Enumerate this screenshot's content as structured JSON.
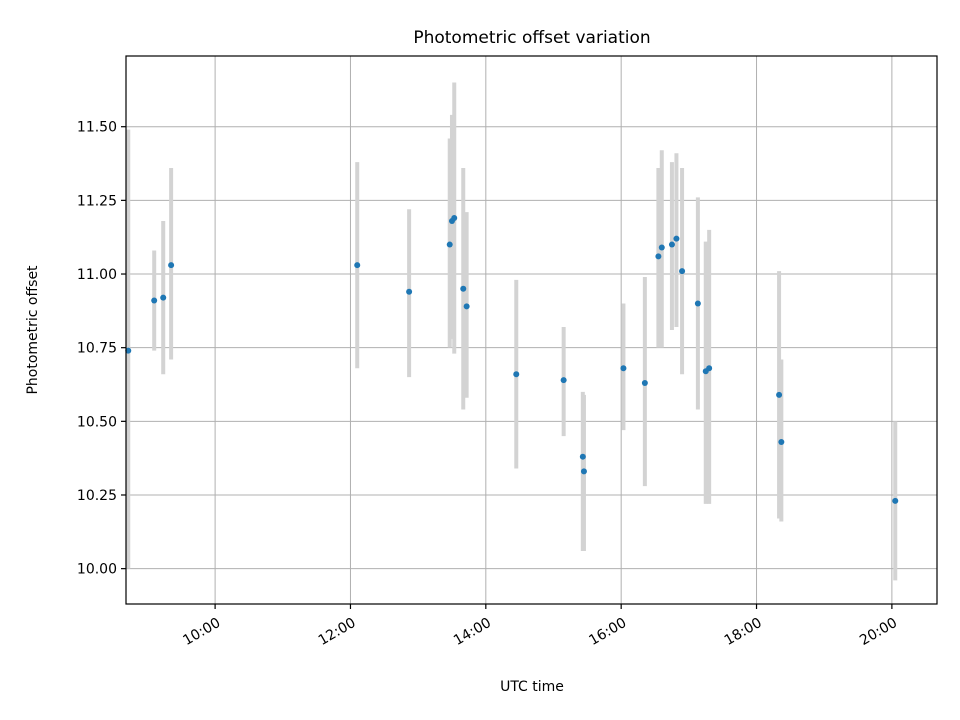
{
  "chart_data": {
    "type": "scatter",
    "title": "Photometric offset variation",
    "xlabel": "UTC time",
    "ylabel": "Photometric offset",
    "x_axis": "time",
    "xlim": [
      "08:41",
      "20:40"
    ],
    "ylim": [
      9.88,
      11.74
    ],
    "x_ticks": [
      "10:00",
      "12:00",
      "14:00",
      "16:00",
      "18:00",
      "20:00"
    ],
    "y_ticks": [
      10.0,
      10.25,
      10.5,
      10.75,
      11.0,
      11.25,
      11.5
    ],
    "y_tick_labels": [
      "10.00",
      "10.25",
      "10.50",
      "10.75",
      "11.00",
      "11.25",
      "11.50"
    ],
    "grid": true,
    "series": [
      {
        "marker_color": "#1f77b4",
        "errorbar_color": "#d3d3d3",
        "points": [
          {
            "t": "08:43",
            "y": 10.74,
            "ylo": 10.0,
            "yhi": 11.49
          },
          {
            "t": "09:06",
            "y": 10.91,
            "ylo": 10.74,
            "yhi": 11.08
          },
          {
            "t": "09:14",
            "y": 10.92,
            "ylo": 10.66,
            "yhi": 11.18
          },
          {
            "t": "09:21",
            "y": 11.03,
            "ylo": 10.71,
            "yhi": 11.36
          },
          {
            "t": "12:06",
            "y": 11.03,
            "ylo": 10.68,
            "yhi": 11.38
          },
          {
            "t": "12:52",
            "y": 10.94,
            "ylo": 10.65,
            "yhi": 11.22
          },
          {
            "t": "13:28",
            "y": 11.1,
            "ylo": 10.75,
            "yhi": 11.46
          },
          {
            "t": "13:30",
            "y": 11.18,
            "ylo": 10.78,
            "yhi": 11.54
          },
          {
            "t": "13:32",
            "y": 11.19,
            "ylo": 10.73,
            "yhi": 11.65
          },
          {
            "t": "13:40",
            "y": 10.95,
            "ylo": 10.54,
            "yhi": 11.36
          },
          {
            "t": "13:43",
            "y": 10.89,
            "ylo": 10.58,
            "yhi": 11.21
          },
          {
            "t": "14:27",
            "y": 10.66,
            "ylo": 10.34,
            "yhi": 10.98
          },
          {
            "t": "15:09",
            "y": 10.64,
            "ylo": 10.45,
            "yhi": 10.82
          },
          {
            "t": "15:26",
            "y": 10.38,
            "ylo": 10.06,
            "yhi": 10.6
          },
          {
            "t": "15:27",
            "y": 10.33,
            "ylo": 10.06,
            "yhi": 10.59
          },
          {
            "t": "16:02",
            "y": 10.68,
            "ylo": 10.47,
            "yhi": 10.9
          },
          {
            "t": "16:21",
            "y": 10.63,
            "ylo": 10.28,
            "yhi": 10.99
          },
          {
            "t": "16:33",
            "y": 11.06,
            "ylo": 10.75,
            "yhi": 11.36
          },
          {
            "t": "16:36",
            "y": 11.09,
            "ylo": 10.75,
            "yhi": 11.42
          },
          {
            "t": "16:45",
            "y": 11.1,
            "ylo": 10.81,
            "yhi": 11.38
          },
          {
            "t": "16:49",
            "y": 11.12,
            "ylo": 10.82,
            "yhi": 11.41
          },
          {
            "t": "16:54",
            "y": 11.01,
            "ylo": 10.66,
            "yhi": 11.36
          },
          {
            "t": "17:08",
            "y": 10.9,
            "ylo": 10.54,
            "yhi": 11.26
          },
          {
            "t": "17:15",
            "y": 10.67,
            "ylo": 10.22,
            "yhi": 11.11
          },
          {
            "t": "17:18",
            "y": 10.68,
            "ylo": 10.22,
            "yhi": 11.15
          },
          {
            "t": "18:20",
            "y": 10.59,
            "ylo": 10.17,
            "yhi": 11.01
          },
          {
            "t": "18:22",
            "y": 10.43,
            "ylo": 10.16,
            "yhi": 10.71
          },
          {
            "t": "20:03",
            "y": 10.23,
            "ylo": 9.96,
            "yhi": 10.5
          }
        ]
      }
    ]
  }
}
